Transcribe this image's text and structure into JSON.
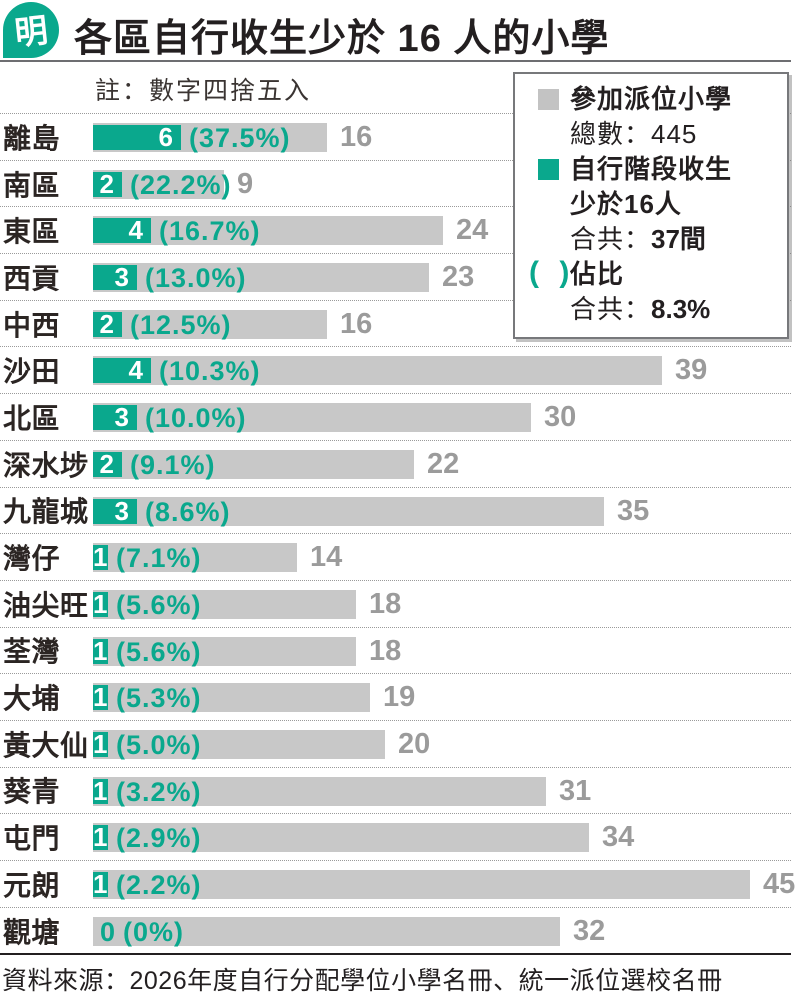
{
  "header": {
    "logo_char": "明",
    "title": "各區自行收生少於 16 人的小學"
  },
  "note": "註：數字四捨五入",
  "legend": {
    "participating": {
      "label": "參加派位小學",
      "sub_label": "總數：",
      "sub_value": "445"
    },
    "under16": {
      "label_line1": "自行階段收生",
      "label_line2": "少於16人",
      "total_label": "合共：",
      "total_value": "37間"
    },
    "ratio": {
      "parens": "( )",
      "label": "佔比",
      "total_label": "合共：",
      "total_value": "8.3%"
    }
  },
  "rows": [
    {
      "district": "離島",
      "count": 6,
      "pct": "(37.5%)",
      "total": 16
    },
    {
      "district": "南區",
      "count": 2,
      "pct": "(22.2%)",
      "total": 9
    },
    {
      "district": "東區",
      "count": 4,
      "pct": "(16.7%)",
      "total": 24
    },
    {
      "district": "西貢",
      "count": 3,
      "pct": "(13.0%)",
      "total": 23
    },
    {
      "district": "中西",
      "count": 2,
      "pct": "(12.5%)",
      "total": 16
    },
    {
      "district": "沙田",
      "count": 4,
      "pct": "(10.3%)",
      "total": 39
    },
    {
      "district": "北區",
      "count": 3,
      "pct": "(10.0%)",
      "total": 30
    },
    {
      "district": "深水埗",
      "count": 2,
      "pct": "(9.1%)",
      "total": 22
    },
    {
      "district": "九龍城",
      "count": 3,
      "pct": "(8.6%)",
      "total": 35
    },
    {
      "district": "灣仔",
      "count": 1,
      "pct": "(7.1%)",
      "total": 14
    },
    {
      "district": "油尖旺",
      "count": 1,
      "pct": "(5.6%)",
      "total": 18
    },
    {
      "district": "荃灣",
      "count": 1,
      "pct": "(5.6%)",
      "total": 18
    },
    {
      "district": "大埔",
      "count": 1,
      "pct": "(5.3%)",
      "total": 19
    },
    {
      "district": "黃大仙",
      "count": 1,
      "pct": "(5.0%)",
      "total": 20
    },
    {
      "district": "葵青",
      "count": 1,
      "pct": "(3.2%)",
      "total": 31
    },
    {
      "district": "屯門",
      "count": 1,
      "pct": "(2.9%)",
      "total": 34
    },
    {
      "district": "元朗",
      "count": 1,
      "pct": "(2.2%)",
      "total": 45
    },
    {
      "district": "觀塘",
      "count": 0,
      "pct": "(0%)",
      "total": 32
    }
  ],
  "footer": {
    "source": "資料來源：2026年度自行分配學位小學名冊、統一派位選校名冊"
  },
  "colors": {
    "teal": "#0aa88d",
    "bar_gray": "#c8c8c8",
    "total_gray": "#9b9b9b",
    "text_black": "#231f20"
  },
  "chart_data": {
    "type": "bar",
    "orientation": "horizontal",
    "title": "各區自行收生少於 16 人的小學",
    "note": "註：數字四捨五入",
    "categories": [
      "離島",
      "南區",
      "東區",
      "西貢",
      "中西",
      "沙田",
      "北區",
      "深水埗",
      "九龍城",
      "灣仔",
      "油尖旺",
      "荃灣",
      "大埔",
      "黃大仙",
      "葵青",
      "屯門",
      "元朗",
      "觀塘"
    ],
    "series": [
      {
        "name": "參加派位小學 總數：445",
        "values": [
          16,
          9,
          24,
          23,
          16,
          39,
          30,
          22,
          35,
          14,
          18,
          18,
          19,
          20,
          31,
          34,
          45,
          32
        ]
      },
      {
        "name": "自行階段收生少於16人 合共：37間",
        "values": [
          6,
          2,
          4,
          3,
          2,
          4,
          3,
          2,
          3,
          1,
          1,
          1,
          1,
          1,
          1,
          1,
          1,
          0
        ]
      },
      {
        "name": "佔比 合共：8.3%",
        "values": [
          "37.5%",
          "22.2%",
          "16.7%",
          "13.0%",
          "12.5%",
          "10.3%",
          "10.0%",
          "9.1%",
          "8.6%",
          "7.1%",
          "5.6%",
          "5.6%",
          "5.3%",
          "5.0%",
          "3.2%",
          "2.9%",
          "2.2%",
          "0%"
        ]
      }
    ],
    "xlim": [
      0,
      45
    ],
    "grid": false,
    "legend_position": "top-right"
  }
}
